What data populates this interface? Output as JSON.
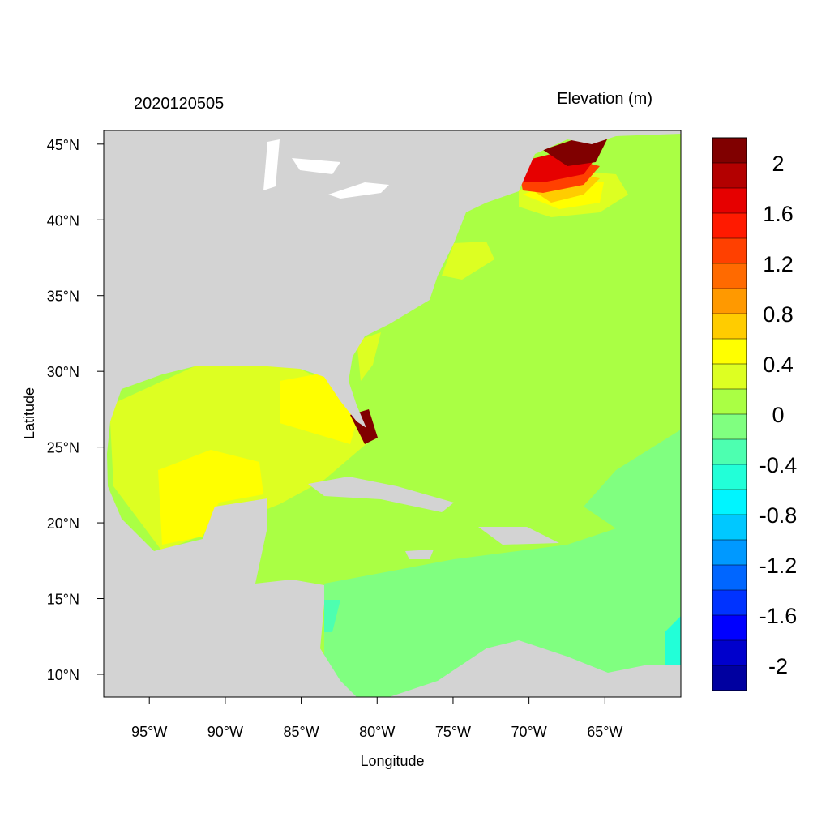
{
  "chart_data": {
    "type": "contour-map",
    "title": "2020120505",
    "subtitle": "Elevation (m)",
    "x_label": "Longitude",
    "y_label": "Latitude",
    "xlim": [
      -98,
      -60
    ],
    "ylim": [
      8.5,
      45.9
    ],
    "xticks": [
      {
        "value": -95,
        "label": "95°W"
      },
      {
        "value": -90,
        "label": "90°W"
      },
      {
        "value": -85,
        "label": "85°W"
      },
      {
        "value": -80,
        "label": "80°W"
      },
      {
        "value": -75,
        "label": "75°W"
      },
      {
        "value": -70,
        "label": "70°W"
      },
      {
        "value": -65,
        "label": "65°W"
      }
    ],
    "yticks": [
      {
        "value": 10,
        "label": "10°N"
      },
      {
        "value": 15,
        "label": "15°N"
      },
      {
        "value": 20,
        "label": "20°N"
      },
      {
        "value": 25,
        "label": "25°N"
      },
      {
        "value": 30,
        "label": "30°N"
      },
      {
        "value": 35,
        "label": "35°N"
      },
      {
        "value": 40,
        "label": "40°N"
      },
      {
        "value": 45,
        "label": "45°N"
      }
    ],
    "colorbar": {
      "levels": [
        -2,
        -1.8,
        -1.6,
        -1.4,
        -1.2,
        -1,
        -0.8,
        -0.6,
        -0.4,
        -0.2,
        0,
        0.2,
        0.4,
        0.6,
        0.8,
        1,
        1.2,
        1.4,
        1.6,
        1.8,
        2
      ],
      "colors": [
        "#0000a0",
        "#0000cc",
        "#0000ff",
        "#0033ff",
        "#0066ff",
        "#0099ff",
        "#00c8ff",
        "#00f5ff",
        "#22ffd8",
        "#4dffb0",
        "#80ff80",
        "#aaff44",
        "#ddff22",
        "#ffff00",
        "#ffcc00",
        "#ff9900",
        "#ff6a00",
        "#ff4000",
        "#ff1a00",
        "#e60000",
        "#b30000",
        "#800000"
      ],
      "ticks": [
        -2,
        -1.6,
        -1.2,
        -0.8,
        -0.4,
        0,
        0.4,
        0.8,
        1.2,
        1.6,
        2
      ]
    }
  }
}
